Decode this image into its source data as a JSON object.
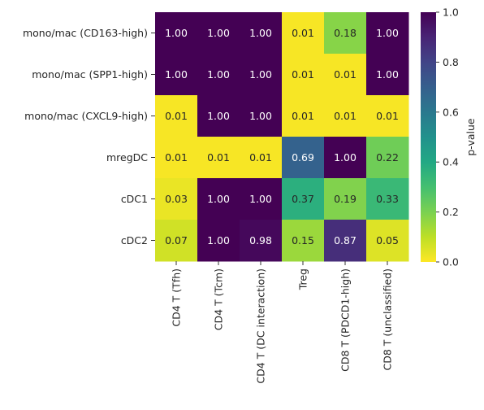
{
  "chart_data": {
    "type": "heatmap",
    "rows": [
      "mono/mac (CD163-high)",
      "mono/mac (SPP1-high)",
      "mono/mac (CXCL9-high)",
      "mregDC",
      "cDC1",
      "cDC2"
    ],
    "columns": [
      "CD4 T (Tfh)",
      "CD4 T (Tcm)",
      "CD4 T (DC interaction)",
      "Treg",
      "CD8 T (PDCD1-high)",
      "CD8 T (unclassified)"
    ],
    "values": [
      [
        1.0,
        1.0,
        1.0,
        0.01,
        0.18,
        1.0
      ],
      [
        1.0,
        1.0,
        1.0,
        0.01,
        0.01,
        1.0
      ],
      [
        0.01,
        1.0,
        1.0,
        0.01,
        0.01,
        0.01
      ],
      [
        0.01,
        0.01,
        0.01,
        0.69,
        1.0,
        0.22
      ],
      [
        0.03,
        1.0,
        1.0,
        0.37,
        0.19,
        0.33
      ],
      [
        0.07,
        1.0,
        0.98,
        0.15,
        0.87,
        0.05
      ]
    ],
    "colorbar": {
      "label": "p-value",
      "range": [
        0.0,
        1.0
      ],
      "ticks": [
        "0.0",
        "0.2",
        "0.4",
        "0.6",
        "0.8",
        "1.0"
      ],
      "colormap": "viridis_r"
    },
    "value_format": "2 decimals"
  }
}
